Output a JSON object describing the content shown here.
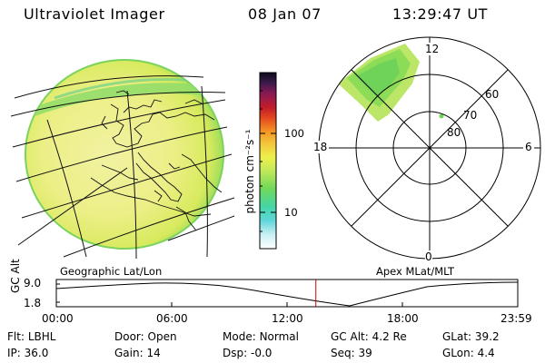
{
  "header": {
    "instrument": "Ultraviolet Imager",
    "date": "08 Jan 07",
    "time": "13:29:47 UT"
  },
  "panels": {
    "left_label": "Geographic Lat/Lon",
    "right_label": "Apex MLat/MLT"
  },
  "colorbar": {
    "unit_label": "photon cm⁻²s⁻¹",
    "ticks": [
      "100",
      "10"
    ]
  },
  "polar": {
    "mlt_labels": [
      "12",
      "18",
      "6",
      "0"
    ],
    "lat_labels": [
      "60",
      "70",
      "80"
    ]
  },
  "timeline": {
    "axis_label": "GC Alt",
    "y_ticks": [
      "9.0",
      "1.8"
    ],
    "x_ticks": [
      "00:00",
      "06:00",
      "12:00",
      "18:00",
      "23:59"
    ],
    "cursor_hours": 13.5
  },
  "info": {
    "row1": [
      {
        "key": "Flt:",
        "val": "LBHL"
      },
      {
        "key": "Door:",
        "val": "Open"
      },
      {
        "key": "Mode:",
        "val": "Normal"
      },
      {
        "key": "GC Alt:",
        "val": "4.2 Re"
      },
      {
        "key": "GLat:",
        "val": "39.2"
      }
    ],
    "row2": [
      {
        "key": "IP:",
        "val": "36.0"
      },
      {
        "key": "Gain:",
        "val": "14"
      },
      {
        "key": "Dsp:",
        "val": "-0.0"
      },
      {
        "key": "Seq:",
        "val": "39"
      },
      {
        "key": "GLon:",
        "val": "4.4"
      }
    ]
  },
  "colors": {
    "cursor": "#cc0000",
    "image_main": "#e9ef7a",
    "image_edge": "#7fd85a"
  }
}
